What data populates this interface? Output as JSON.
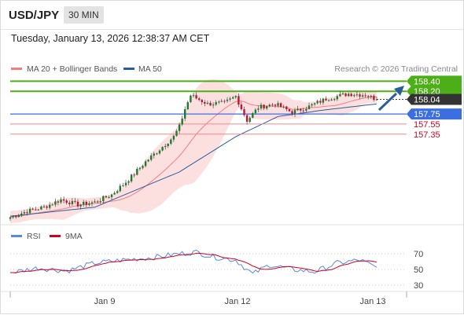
{
  "header": {
    "symbol": "USD/JPY",
    "timeframe": "30 MIN",
    "datetime": "Tuesday, January 13, 2026 12:38:37 AM CET"
  },
  "legend": {
    "ma20_label": "MA 20 + Bollinger Bands",
    "ma50_label": "MA 50",
    "credit": "Research © 2026 Trading Central",
    "rsi_label": "RSI",
    "rsi_ma_label": "9MA"
  },
  "colors": {
    "up_candle": "#1f7a2c",
    "down_candle": "#c8102e",
    "bollinger_fill": "#fbd6d6",
    "ma20": "#f08080",
    "ma50": "#2a5d9f",
    "resistance_green": "#4caf17",
    "pivot_blue": "#3b6fe0",
    "support_red": "#f28a8a",
    "support_text": "#d0021b",
    "rsi_line": "#5b86e5",
    "rsi_ma": "#d0021b",
    "arrow": "#2a5d9f"
  },
  "chart_data": [
    {
      "type": "candlestick",
      "title": "USD/JPY",
      "timeframe": "30 MIN",
      "x_ticks": [
        "Jan 9",
        "Jan 12",
        "Jan 13"
      ],
      "ylim": [
        155.6,
        158.5
      ],
      "levels": [
        {
          "value": 158.4,
          "label": "158.40",
          "kind": "resistance"
        },
        {
          "value": 158.2,
          "label": "158.20",
          "kind": "resistance"
        },
        {
          "value": 158.04,
          "label": "158.04",
          "kind": "last_price"
        },
        {
          "value": 157.75,
          "label": "157.75",
          "kind": "pivot"
        },
        {
          "value": 157.55,
          "label": "157.55",
          "kind": "support"
        },
        {
          "value": 157.35,
          "label": "157.35",
          "kind": "support"
        }
      ],
      "trend_arrow": {
        "from": 158.0,
        "to": 158.4,
        "direction": "up"
      },
      "close_path_keypoints": [
        {
          "i": 0,
          "v": 155.7
        },
        {
          "i": 6,
          "v": 155.82
        },
        {
          "i": 12,
          "v": 155.9
        },
        {
          "i": 18,
          "v": 156.05
        },
        {
          "i": 24,
          "v": 155.95
        },
        {
          "i": 30,
          "v": 156.0
        },
        {
          "i": 36,
          "v": 156.15
        },
        {
          "i": 42,
          "v": 156.45
        },
        {
          "i": 48,
          "v": 156.8
        },
        {
          "i": 54,
          "v": 157.1
        },
        {
          "i": 58,
          "v": 157.3
        },
        {
          "i": 60,
          "v": 157.5
        },
        {
          "i": 62,
          "v": 157.85
        },
        {
          "i": 64,
          "v": 158.12
        },
        {
          "i": 70,
          "v": 157.95
        },
        {
          "i": 76,
          "v": 157.97
        },
        {
          "i": 80,
          "v": 158.1
        },
        {
          "i": 84,
          "v": 157.62
        },
        {
          "i": 88,
          "v": 157.88
        },
        {
          "i": 94,
          "v": 157.95
        },
        {
          "i": 100,
          "v": 157.78
        },
        {
          "i": 106,
          "v": 157.9
        },
        {
          "i": 112,
          "v": 158.05
        },
        {
          "i": 120,
          "v": 158.15
        },
        {
          "i": 126,
          "v": 158.13
        },
        {
          "i": 130,
          "v": 158.04
        }
      ],
      "ma50_keypoints": [
        {
          "i": 0,
          "v": 155.72
        },
        {
          "i": 30,
          "v": 155.9
        },
        {
          "i": 60,
          "v": 156.6
        },
        {
          "i": 80,
          "v": 157.3
        },
        {
          "i": 95,
          "v": 157.7
        },
        {
          "i": 110,
          "v": 157.82
        },
        {
          "i": 130,
          "v": 157.95
        }
      ]
    },
    {
      "type": "line",
      "title": "RSI",
      "series": [
        {
          "name": "RSI"
        },
        {
          "name": "9MA"
        }
      ],
      "y_ticks": [
        "70",
        "50",
        "30"
      ],
      "ylim": [
        20,
        80
      ],
      "rsi_keypoints": [
        {
          "i": 0,
          "v": 46
        },
        {
          "i": 10,
          "v": 52
        },
        {
          "i": 20,
          "v": 48
        },
        {
          "i": 30,
          "v": 58
        },
        {
          "i": 40,
          "v": 62
        },
        {
          "i": 50,
          "v": 65
        },
        {
          "i": 60,
          "v": 70
        },
        {
          "i": 66,
          "v": 72
        },
        {
          "i": 72,
          "v": 66
        },
        {
          "i": 80,
          "v": 62
        },
        {
          "i": 86,
          "v": 44
        },
        {
          "i": 92,
          "v": 56
        },
        {
          "i": 100,
          "v": 50
        },
        {
          "i": 108,
          "v": 47
        },
        {
          "i": 116,
          "v": 58
        },
        {
          "i": 124,
          "v": 62
        },
        {
          "i": 130,
          "v": 52
        }
      ]
    }
  ]
}
